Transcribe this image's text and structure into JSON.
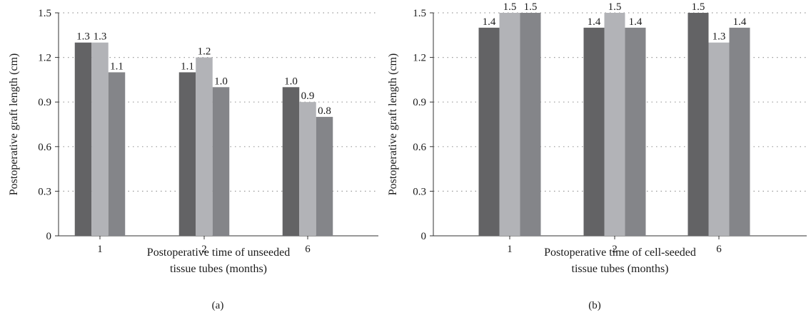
{
  "colors": {
    "series_1": "#636365",
    "series_2": "#b2b3b7",
    "series_3": "#848589",
    "grid": "#9a9a9a",
    "axis": "#333333"
  },
  "chart_data": [
    {
      "type": "bar",
      "panel_label": "(a)",
      "categories": [
        "1",
        "2",
        "6"
      ],
      "series": [
        {
          "values": [
            1.3,
            1.1,
            1.0
          ],
          "labels": [
            "1.3",
            "1.1",
            "1.0"
          ]
        },
        {
          "values": [
            1.3,
            1.2,
            0.9
          ],
          "labels": [
            "1.3",
            "1.2",
            "0.9"
          ]
        },
        {
          "values": [
            1.1,
            1.0,
            0.8
          ],
          "labels": [
            "1.1",
            "1.0",
            "0.8"
          ]
        }
      ],
      "xlabel_lines": [
        "Postoperative time of unseeded",
        "tissue tubes (months)"
      ],
      "ylabel": "Postoperative graft length (cm)",
      "ylim": [
        0,
        1.5
      ],
      "yticks": [
        0,
        0.3,
        0.6,
        0.9,
        1.2,
        1.5
      ],
      "ytick_labels": [
        "0",
        "0.3",
        "0.6",
        "0.9",
        "1.2",
        "1.5"
      ],
      "grid": "horizontal-dotted",
      "legend": "none"
    },
    {
      "type": "bar",
      "panel_label": "(b)",
      "categories": [
        "1",
        "2",
        "6"
      ],
      "series": [
        {
          "values": [
            1.4,
            1.4,
            1.5
          ],
          "labels": [
            "1.4",
            "1.4",
            "1.5"
          ]
        },
        {
          "values": [
            1.5,
            1.5,
            1.3
          ],
          "labels": [
            "1.5",
            "1.5",
            "1.3"
          ]
        },
        {
          "values": [
            1.5,
            1.4,
            1.4
          ],
          "labels": [
            "1.5",
            "1.4",
            "1.4"
          ]
        }
      ],
      "xlabel_lines": [
        "Postoperative time of cell-seeded",
        "tissue tubes (months)"
      ],
      "ylabel": "Postoperative graft length (cm)",
      "ylim": [
        0,
        1.5
      ],
      "yticks": [
        0,
        0.3,
        0.6,
        0.9,
        1.2,
        1.5
      ],
      "ytick_labels": [
        "0",
        "0.3",
        "0.6",
        "0.9",
        "1.2",
        "1.5"
      ],
      "grid": "horizontal-dotted",
      "legend": "none"
    }
  ]
}
